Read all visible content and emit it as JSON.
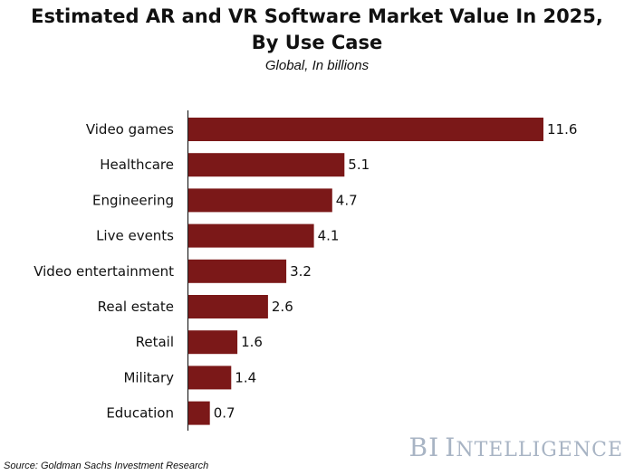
{
  "header": {
    "title_line1": "Estimated AR and VR Software Market Value In 2025,",
    "title_line2": "By Use Case",
    "subtitle": "Global, In billions"
  },
  "footer": {
    "source": "Source: Goldman Sachs Investment Research",
    "logo_bi": "BI",
    "logo_word_first": "I",
    "logo_word_rest": "NTELLIGENCE"
  },
  "colors": {
    "bar": "#7b1818",
    "logo": "#a8b4c4"
  },
  "chart_data": {
    "type": "bar",
    "orientation": "horizontal",
    "title": "Estimated AR and VR Software Market Value In 2025, By Use Case",
    "subtitle": "Global, In billions",
    "categories": [
      "Video games",
      "Healthcare",
      "Engineering",
      "Live events",
      "Video entertainment",
      "Real estate",
      "Retail",
      "Military",
      "Education"
    ],
    "values": [
      11.6,
      5.1,
      4.7,
      4.1,
      3.2,
      2.6,
      1.6,
      1.4,
      0.7
    ],
    "value_labels": [
      "11.6",
      "5.1",
      "4.7",
      "4.1",
      "3.2",
      "2.6",
      "1.6",
      "1.4",
      "0.7"
    ],
    "xlabel": "",
    "ylabel": "",
    "xlim": [
      0,
      11.6
    ],
    "grid": false,
    "legend": "none"
  }
}
